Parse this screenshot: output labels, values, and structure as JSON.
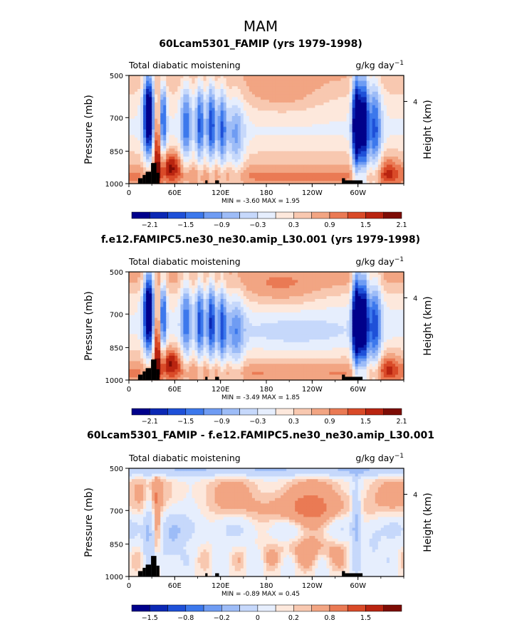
{
  "figure": {
    "title": "MAM",
    "palette": [
      "#00008b",
      "#0b28b4",
      "#1e50d8",
      "#3c78ec",
      "#6f9cf3",
      "#9dbcf7",
      "#c6d8fb",
      "#e6eefd",
      "#fde8dc",
      "#f8c8b0",
      "#f2a583",
      "#ea7a54",
      "#d94a28",
      "#b92410",
      "#7d0c05"
    ]
  },
  "chart_data": [
    {
      "type": "heatmap",
      "title": "60Lcam5301_FAMIP (yrs 1979-1998)",
      "left_subtitle": "Total diabatic moistening",
      "units_base": "g/kg day",
      "units_exp": "−1",
      "ylabel": "Pressure (mb)",
      "ylabel_right": "Height (km)",
      "yticks": [
        "500",
        "700",
        "850",
        "1000"
      ],
      "yticks_right": [
        "4"
      ],
      "xticks": [
        "0",
        "60E",
        "120E",
        "180",
        "120W",
        "60W"
      ],
      "xlim": [
        0,
        360
      ],
      "ylim": [
        1000,
        500
      ],
      "min_text": "MIN =   -3.60   MAX =    1.95",
      "colorbar_labels": [
        "−2.1",
        "−1.5",
        "−0.9",
        "−0.3",
        "0.3",
        "0.9",
        "1.5",
        "2.1"
      ],
      "levels": [
        -2.4,
        -2.1,
        -1.8,
        -1.5,
        -1.2,
        -0.9,
        -0.6,
        -0.3,
        0,
        0.3,
        0.6,
        0.9,
        1.2,
        1.5,
        1.8,
        2.1
      ],
      "field_mode": "model1"
    },
    {
      "type": "heatmap",
      "title": "f.e12.FAMIPC5.ne30_ne30.amip_L30.001 (yrs 1979-1998)",
      "left_subtitle": "Total diabatic moistening",
      "units_base": "g/kg day",
      "units_exp": "−1",
      "ylabel": "Pressure (mb)",
      "ylabel_right": "Height (km)",
      "yticks": [
        "500",
        "700",
        "850",
        "1000"
      ],
      "yticks_right": [
        "4"
      ],
      "xticks": [
        "0",
        "60E",
        "120E",
        "180",
        "120W",
        "60W"
      ],
      "xlim": [
        0,
        360
      ],
      "ylim": [
        1000,
        500
      ],
      "min_text": "MIN =   -3.49   MAX =    1.85",
      "colorbar_labels": [
        "−2.1",
        "−1.5",
        "−0.9",
        "−0.3",
        "0.3",
        "0.9",
        "1.5",
        "2.1"
      ],
      "levels": [
        -2.4,
        -2.1,
        -1.8,
        -1.5,
        -1.2,
        -0.9,
        -0.6,
        -0.3,
        0,
        0.3,
        0.6,
        0.9,
        1.2,
        1.5,
        1.8,
        2.1
      ],
      "field_mode": "model2"
    },
    {
      "type": "heatmap",
      "title": "60Lcam5301_FAMIP - f.e12.FAMIPC5.ne30_ne30.amip_L30.001",
      "left_subtitle": "Total diabatic moistening",
      "units_base": "g/kg day",
      "units_exp": "−1",
      "ylabel": "Pressure (mb)",
      "ylabel_right": "Height (km)",
      "yticks": [
        "500",
        "700",
        "850",
        "1000"
      ],
      "yticks_right": [
        "4"
      ],
      "xticks": [
        "0",
        "60E",
        "120E",
        "180",
        "120W",
        "60W"
      ],
      "xlim": [
        0,
        360
      ],
      "ylim": [
        1000,
        500
      ],
      "min_text": "MIN =   -0.89   MAX =    0.45",
      "colorbar_labels": [
        "−1.5",
        "−0.8",
        "−0.2",
        "0",
        "0.2",
        "0.8",
        "1.5"
      ],
      "colorbar_label_slots": [
        1,
        3,
        5,
        7,
        9,
        11,
        13
      ],
      "levels": [
        -2.0,
        -1.8,
        -1.5,
        -1.2,
        -0.8,
        -0.5,
        -0.2,
        0,
        0.1,
        0.2,
        0.5,
        0.8,
        1.2,
        1.5,
        1.8,
        2.0
      ],
      "field_mode": "diff"
    }
  ]
}
